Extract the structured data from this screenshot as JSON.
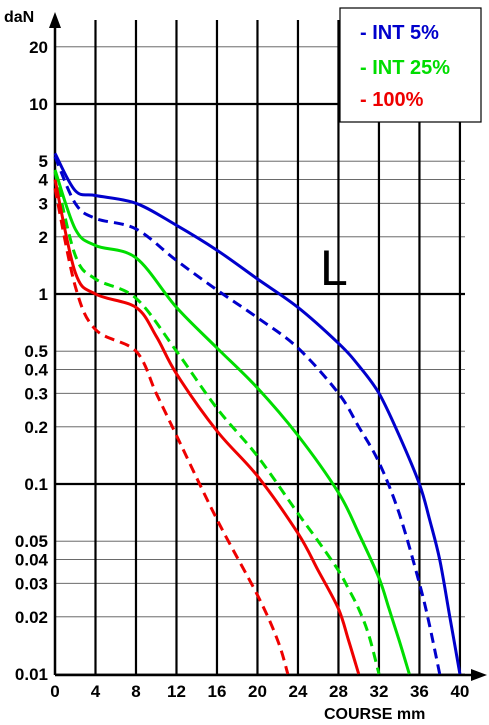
{
  "chart_data": {
    "type": "line",
    "title": "",
    "xlabel": "COURSE mm",
    "ylabel": "daN",
    "yscale": "log",
    "xlim": [
      0,
      40
    ],
    "ylim": [
      0.01,
      30
    ],
    "x_ticks": [
      0,
      4,
      8,
      12,
      16,
      20,
      24,
      28,
      32,
      36,
      40
    ],
    "x_tick_labels": [
      "0",
      "4",
      "8",
      "12",
      "16",
      "20",
      "24",
      "28",
      "32",
      "36",
      "40"
    ],
    "y_ticks": [
      20,
      10,
      5,
      4,
      3,
      2,
      1,
      0.5,
      0.4,
      0.3,
      0.2,
      0.1,
      0.05,
      0.04,
      0.03,
      0.02,
      0.01
    ],
    "y_tick_labels": [
      "20",
      "10",
      "5",
      "4",
      "3",
      "2",
      "1",
      "0.5",
      "0.4",
      "0.3",
      "0.2",
      "0.1",
      "0.05",
      "0.04",
      "0.03",
      "0.02",
      "0.01"
    ],
    "grid": true,
    "annotation": "L",
    "legend": {
      "position": "top-right",
      "entries": [
        {
          "label": "- INT 5%",
          "color": "#0000cc"
        },
        {
          "label": "- INT 25%",
          "color": "#00dd00"
        },
        {
          "label": "- 100%",
          "color": "#ee0000"
        }
      ]
    },
    "series": [
      {
        "color": "#0000cc",
        "dash": false,
        "x": [
          0,
          2,
          4,
          8,
          12,
          16,
          20,
          24,
          28,
          30,
          32,
          34,
          36,
          37,
          38,
          39,
          40
        ],
        "y": [
          5.5,
          3.5,
          3.3,
          3.0,
          2.3,
          1.7,
          1.2,
          0.85,
          0.55,
          0.42,
          0.3,
          0.18,
          0.1,
          0.065,
          0.04,
          0.02,
          0.01
        ]
      },
      {
        "color": "#0000cc",
        "dash": true,
        "x": [
          0,
          2,
          4,
          8,
          12,
          16,
          20,
          24,
          28,
          30,
          32,
          34,
          36,
          37,
          38
        ],
        "y": [
          5.3,
          3.0,
          2.5,
          2.2,
          1.5,
          1.05,
          0.75,
          0.52,
          0.3,
          0.2,
          0.13,
          0.07,
          0.03,
          0.018,
          0.01
        ]
      },
      {
        "color": "#00dd00",
        "dash": false,
        "x": [
          0,
          2,
          4,
          8,
          12,
          16,
          20,
          24,
          28,
          30,
          32,
          33,
          34,
          35
        ],
        "y": [
          4.5,
          2.2,
          1.8,
          1.55,
          0.85,
          0.52,
          0.32,
          0.18,
          0.09,
          0.055,
          0.032,
          0.022,
          0.015,
          0.01
        ]
      },
      {
        "color": "#00dd00",
        "dash": true,
        "x": [
          0,
          2,
          4,
          8,
          12,
          16,
          20,
          24,
          26,
          28,
          29,
          30,
          31,
          32
        ],
        "y": [
          4.4,
          1.6,
          1.2,
          0.95,
          0.5,
          0.25,
          0.14,
          0.07,
          0.05,
          0.035,
          0.028,
          0.022,
          0.016,
          0.01
        ]
      },
      {
        "color": "#ee0000",
        "dash": false,
        "x": [
          0,
          2,
          4,
          8,
          10,
          12,
          16,
          20,
          24,
          26,
          28,
          29,
          30
        ],
        "y": [
          4.0,
          1.3,
          1.0,
          0.85,
          0.6,
          0.38,
          0.19,
          0.11,
          0.055,
          0.035,
          0.022,
          0.015,
          0.01
        ]
      },
      {
        "color": "#ee0000",
        "dash": true,
        "x": [
          0,
          2,
          4,
          8,
          10,
          12,
          16,
          20,
          22,
          23
        ],
        "y": [
          3.6,
          1.1,
          0.65,
          0.5,
          0.3,
          0.18,
          0.065,
          0.026,
          0.015,
          0.01
        ]
      }
    ]
  }
}
